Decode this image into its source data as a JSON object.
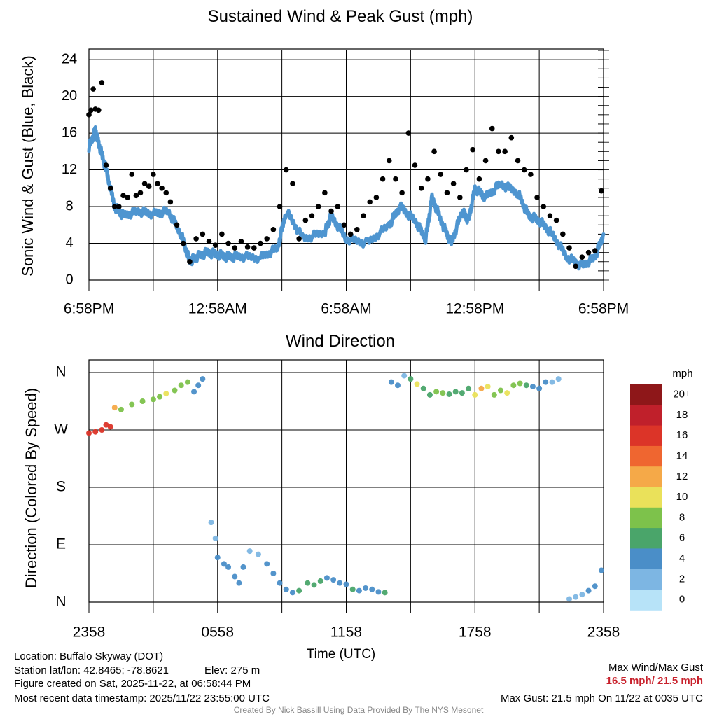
{
  "top_chart": {
    "title": "Sustained Wind & Peak Gust (mph)",
    "ylabel": "Sonic Wind & Gust (Blue, Black)",
    "ylim": [
      0,
      25
    ],
    "yticks": [
      0,
      4,
      8,
      12,
      16,
      20,
      24
    ],
    "xlim": [
      0,
      24
    ],
    "xtick_positions": [
      0,
      6,
      12,
      18,
      24
    ],
    "xtick_labels": [
      "6:58PM",
      "12:58AM",
      "6:58AM",
      "12:58PM",
      "6:58PM"
    ],
    "colors": {
      "sustained": "#4e95d0",
      "gust": "#000000",
      "grid": "#000000"
    }
  },
  "bottom_chart": {
    "title": "Wind Direction",
    "ylabel": "Direction (Colored By Speed)",
    "ytick_labels": [
      "N",
      "E",
      "S",
      "W",
      "N"
    ],
    "ytick_values": [
      0,
      90,
      180,
      270,
      360
    ],
    "xlim": [
      0,
      24
    ],
    "xtick_positions": [
      0,
      6,
      12,
      18,
      24
    ],
    "xtick_labels": [
      "2358",
      "0558",
      "1158",
      "1758",
      "2358"
    ],
    "xlabel": "Time (UTC)"
  },
  "legend": {
    "unit": "mph",
    "labels": [
      "20+",
      "18",
      "16",
      "14",
      "12",
      "10",
      "8",
      "6",
      "4",
      "2",
      "0"
    ],
    "colors": [
      "#8e1719",
      "#c0202b",
      "#dc3428",
      "#ef6630",
      "#f5a948",
      "#eae15a",
      "#7dc24b",
      "#4aa56a",
      "#4a8ec8",
      "#7db6e3",
      "#b7e3f8"
    ]
  },
  "chart_data": [
    {
      "type": "line+scatter",
      "title": "Sustained Wind & Peak Gust (mph)",
      "x_unit": "hours since 6:58PM",
      "series": [
        {
          "name": "Sustained Wind",
          "x": [
            0,
            0.3,
            0.5,
            0.8,
            1.2,
            1.6,
            2.3,
            3.0,
            3.7,
            4.3,
            4.7,
            5.0,
            5.5,
            6.0,
            6.5,
            7.0,
            8.0,
            8.8,
            9.2,
            10.0,
            11.0,
            11.3,
            12.0,
            13.0,
            14.0,
            14.5,
            15.2,
            15.7,
            16.0,
            16.5,
            16.9,
            17.4,
            17.7,
            18.0,
            18.5,
            19.2,
            20.0,
            20.5,
            21.0,
            21.6,
            22.3,
            23.0,
            23.6,
            24.0
          ],
          "y": [
            14.5,
            16.3,
            14.5,
            12.0,
            8.0,
            7.0,
            7.5,
            7.2,
            7.5,
            5.0,
            2.0,
            2.5,
            3.0,
            2.8,
            2.5,
            2.6,
            2.4,
            3.5,
            7.5,
            4.5,
            5.2,
            7.0,
            4.5,
            4.0,
            6.0,
            8.0,
            6.5,
            4.5,
            9.0,
            6.0,
            4.0,
            7.5,
            6.5,
            10.0,
            9.0,
            10.5,
            9.5,
            7.0,
            6.5,
            5.0,
            2.5,
            1.5,
            2.5,
            5.0
          ]
        },
        {
          "name": "Peak Gust",
          "x": [
            0.0,
            0.1,
            0.2,
            0.3,
            0.45,
            0.6,
            0.8,
            1.0,
            1.2,
            1.4,
            1.6,
            1.8,
            2.0,
            2.2,
            2.4,
            2.6,
            2.8,
            3.0,
            3.2,
            3.4,
            3.6,
            3.8,
            4.1,
            4.4,
            4.7,
            5.0,
            5.3,
            5.6,
            5.9,
            6.2,
            6.5,
            6.8,
            7.1,
            7.4,
            7.7,
            8.0,
            8.3,
            8.6,
            8.9,
            9.2,
            9.5,
            9.8,
            10.1,
            10.4,
            10.7,
            11.0,
            11.3,
            11.6,
            11.9,
            12.2,
            12.5,
            12.8,
            13.1,
            13.4,
            13.7,
            14.0,
            14.3,
            14.6,
            14.9,
            15.2,
            15.5,
            15.8,
            16.1,
            16.4,
            16.7,
            17.0,
            17.3,
            17.6,
            17.9,
            18.2,
            18.5,
            18.8,
            19.1,
            19.4,
            19.7,
            20.0,
            20.3,
            20.6,
            20.9,
            21.2,
            21.5,
            21.8,
            22.1,
            22.4,
            22.7,
            23.0,
            23.3,
            23.6,
            23.9
          ],
          "y": [
            18.0,
            18.5,
            20.8,
            18.6,
            18.5,
            21.5,
            12.5,
            10.0,
            8.0,
            8.0,
            9.2,
            9.0,
            11.5,
            9.2,
            9.5,
            10.5,
            10.2,
            11.5,
            10.5,
            10.0,
            9.5,
            8.5,
            6.0,
            4.0,
            2.0,
            4.5,
            5.0,
            4.2,
            3.8,
            5.0,
            4.0,
            3.5,
            4.2,
            3.6,
            3.5,
            4.0,
            4.5,
            5.5,
            8.0,
            12.0,
            10.5,
            4.5,
            6.5,
            7.0,
            8.0,
            9.5,
            7.5,
            8.0,
            6.0,
            5.0,
            5.5,
            7.0,
            8.5,
            9.0,
            11.0,
            13.0,
            11.0,
            9.5,
            16.0,
            12.5,
            10.0,
            11.0,
            14.0,
            11.5,
            9.5,
            10.5,
            9.0,
            12.0,
            14.2,
            11.0,
            13.0,
            16.5,
            14.0,
            14.0,
            15.5,
            13.0,
            12.0,
            11.5,
            9.0,
            8.0,
            7.0,
            6.5,
            5.0,
            3.5,
            1.5,
            2.5,
            3.0,
            3.2,
            9.7
          ]
        }
      ],
      "ylim": [
        0,
        25
      ],
      "max_wind_mph": 16.5,
      "max_gust_mph": 21.5
    },
    {
      "type": "scatter",
      "title": "Wind Direction",
      "x_unit": "hours since 2358 UTC",
      "y_unit": "degrees",
      "points": [
        [
          0.0,
          265,
          15
        ],
        [
          0.3,
          267,
          15
        ],
        [
          0.6,
          270,
          16
        ],
        [
          0.8,
          278,
          16
        ],
        [
          1.0,
          275,
          16
        ],
        [
          1.2,
          305,
          12
        ],
        [
          1.5,
          302,
          8
        ],
        [
          2.0,
          310,
          8
        ],
        [
          2.5,
          315,
          8
        ],
        [
          3.0,
          318,
          8
        ],
        [
          3.3,
          322,
          8
        ],
        [
          3.6,
          327,
          9
        ],
        [
          4.0,
          332,
          8
        ],
        [
          4.3,
          340,
          8
        ],
        [
          4.6,
          345,
          7
        ],
        [
          4.9,
          330,
          4
        ],
        [
          5.1,
          340,
          4
        ],
        [
          5.3,
          350,
          3
        ],
        [
          5.7,
          125,
          1
        ],
        [
          5.9,
          100,
          1
        ],
        [
          6.0,
          70,
          4
        ],
        [
          6.3,
          60,
          3
        ],
        [
          6.5,
          55,
          3
        ],
        [
          6.8,
          40,
          4
        ],
        [
          7.0,
          30,
          4
        ],
        [
          7.2,
          55,
          3
        ],
        [
          7.5,
          80,
          2
        ],
        [
          7.9,
          75,
          2
        ],
        [
          8.3,
          60,
          3
        ],
        [
          8.6,
          45,
          3
        ],
        [
          8.9,
          30,
          3
        ],
        [
          9.2,
          20,
          3
        ],
        [
          9.5,
          15,
          4
        ],
        [
          9.8,
          18,
          5
        ],
        [
          10.2,
          30,
          6
        ],
        [
          10.5,
          27,
          6
        ],
        [
          10.8,
          33,
          5
        ],
        [
          11.1,
          38,
          4
        ],
        [
          11.4,
          35,
          4
        ],
        [
          11.7,
          30,
          4
        ],
        [
          12.0,
          28,
          4
        ],
        [
          12.3,
          20,
          5
        ],
        [
          12.6,
          18,
          4
        ],
        [
          12.9,
          22,
          4
        ],
        [
          13.2,
          20,
          4
        ],
        [
          13.5,
          16,
          4
        ],
        [
          13.8,
          15,
          5
        ],
        [
          14.1,
          345,
          3
        ],
        [
          14.4,
          340,
          3
        ],
        [
          14.7,
          355,
          2
        ],
        [
          15.0,
          350,
          6
        ],
        [
          15.3,
          342,
          9
        ],
        [
          15.6,
          335,
          6
        ],
        [
          15.9,
          325,
          5
        ],
        [
          16.2,
          330,
          7
        ],
        [
          16.5,
          328,
          7
        ],
        [
          16.8,
          326,
          6
        ],
        [
          17.1,
          330,
          5
        ],
        [
          17.4,
          328,
          6
        ],
        [
          17.7,
          335,
          6
        ],
        [
          18.0,
          325,
          10
        ],
        [
          18.3,
          335,
          11
        ],
        [
          18.6,
          338,
          10
        ],
        [
          18.9,
          325,
          7
        ],
        [
          19.2,
          332,
          8
        ],
        [
          19.5,
          328,
          9
        ],
        [
          19.8,
          340,
          8
        ],
        [
          20.1,
          343,
          7
        ],
        [
          20.4,
          340,
          5
        ],
        [
          20.7,
          338,
          4
        ],
        [
          21.0,
          335,
          3
        ],
        [
          21.3,
          345,
          3
        ],
        [
          21.6,
          345,
          2
        ],
        [
          21.9,
          350,
          2
        ],
        [
          22.4,
          5,
          1
        ],
        [
          22.7,
          8,
          1
        ],
        [
          23.0,
          12,
          2
        ],
        [
          23.3,
          18,
          3
        ],
        [
          23.6,
          25,
          3
        ],
        [
          23.9,
          50,
          4
        ]
      ]
    }
  ],
  "info": {
    "location": "Location: Buffalo Skyway (DOT)",
    "station": "Station lat/lon: 42.8465; -78.8621",
    "elev": "Elev: 275 m",
    "created": "Figure created on Sat, 2025-11-22, at 06:58:44 PM",
    "recent": "Most recent data timestamp: 2025/11/22 23:55:00 UTC"
  },
  "summary": {
    "heading": "Max Wind/Max Gust",
    "values": "16.5 mph/ 21.5 mph",
    "max_gust": "Max Gust: 21.5 mph On 11/22 at 0035 UTC"
  },
  "footer": "Created By Nick Bassill Using Data Provided By The NYS Mesonet"
}
